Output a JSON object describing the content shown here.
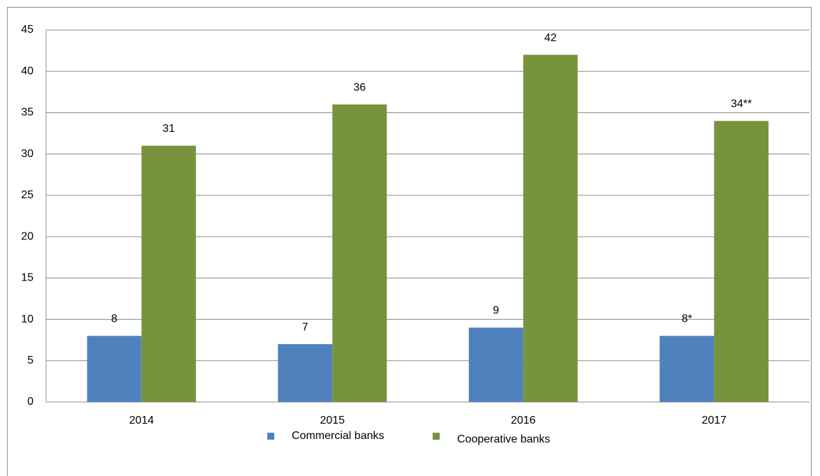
{
  "chart_data": {
    "type": "bar",
    "categories": [
      "2014",
      "2015",
      "2016",
      "2017"
    ],
    "series": [
      {
        "name": "Commercial banks",
        "color": "#4f81bd",
        "values": [
          8,
          7,
          9,
          8
        ],
        "value_labels": [
          "8",
          "7",
          "9",
          "8*"
        ]
      },
      {
        "name": "Cooperative banks",
        "color": "#77933c",
        "values": [
          31,
          36,
          42,
          34
        ],
        "value_labels": [
          "31",
          "36",
          "42",
          "34**"
        ]
      }
    ],
    "ylim": [
      0,
      45
    ],
    "yticks": [
      0,
      5,
      10,
      15,
      20,
      25,
      30,
      35,
      40,
      45
    ],
    "grid": true
  }
}
